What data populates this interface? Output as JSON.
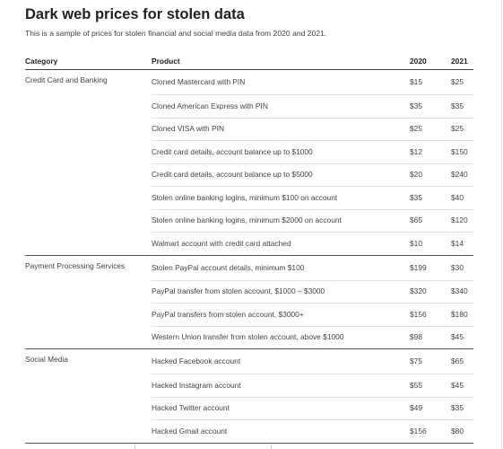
{
  "header": {
    "title": "Dark web prices for stolen data",
    "subtitle": "This is a sample of prices for stolen financial and social media data from 2020 and 2021."
  },
  "table": {
    "columns": [
      "Category",
      "Product",
      "2020",
      "2021"
    ],
    "groups": [
      {
        "category": "Credit Card and Banking",
        "rows": [
          {
            "product": "Cloned Mastercard with PIN",
            "y2020": "$15",
            "y2021": "$25"
          },
          {
            "product": "Cloned American Express with PIN",
            "y2020": "$35",
            "y2021": "$35"
          },
          {
            "product": "Cloned VISA with PIN",
            "y2020": "$25",
            "y2021": "$25"
          },
          {
            "product": "Credit card details, account balance up to $1000",
            "y2020": "$12",
            "y2021": "$150"
          },
          {
            "product": "Credit card details, account balance up to $5000",
            "y2020": "$20",
            "y2021": "$240"
          },
          {
            "product": "Stolen online banking logins, minimum $100 on account",
            "y2020": "$35",
            "y2021": "$40"
          },
          {
            "product": "Stolen online banking logins, minimum $2000 on account",
            "y2020": "$65",
            "y2021": "$120"
          },
          {
            "product": "Walmart account with credit card attached",
            "y2020": "$10",
            "y2021": "$14"
          }
        ]
      },
      {
        "category": "Payment Processing Services",
        "rows": [
          {
            "product": "Stolen PayPal account details, minimum $100",
            "y2020": "$199",
            "y2021": "$30"
          },
          {
            "product": "PayPal transfer from stolen account, $1000 – $3000",
            "y2020": "$320",
            "y2021": "$340"
          },
          {
            "product": "PayPal transfers from stolen account, $3000+",
            "y2020": "$156",
            "y2021": "$180"
          },
          {
            "product": "Western Union transfer from stolen account, above $1000",
            "y2020": "$98",
            "y2021": "$45"
          }
        ]
      },
      {
        "category": "Social Media",
        "rows": [
          {
            "product": "Hacked Facebook account",
            "y2020": "$75",
            "y2021": "$65"
          },
          {
            "product": "Hacked Instagram account",
            "y2020": "$55",
            "y2021": "$45"
          },
          {
            "product": "Hacked Twitter account",
            "y2020": "$49",
            "y2021": "$35"
          },
          {
            "product": "Hacked Gmail account",
            "y2020": "$156",
            "y2021": "$80"
          }
        ]
      }
    ]
  }
}
